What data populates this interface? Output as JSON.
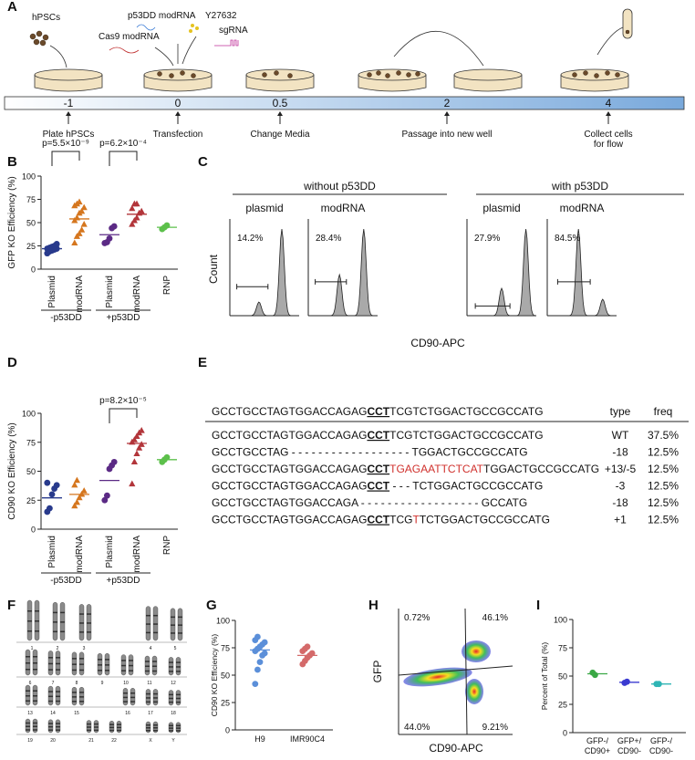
{
  "panel_labels": [
    "A",
    "B",
    "C",
    "D",
    "E",
    "F",
    "G",
    "H",
    "I"
  ],
  "timeline": {
    "reagents": [
      "hPSCs",
      "p53DD modRNA",
      "Y27632",
      "Cas9 modRNA",
      "sgRNA"
    ],
    "days": [
      "-1",
      "0",
      "0.5",
      "2",
      "4"
    ],
    "steps": [
      [
        "Plate hPSCs"
      ],
      [
        "Transfection"
      ],
      [
        "Change Media"
      ],
      [
        "Passage into new well"
      ],
      [
        "Collect cells",
        "for flow"
      ]
    ]
  },
  "chart_data": [
    {
      "type": "strip",
      "y_label": "GFP KO Efficiency (%)",
      "categories": [
        "Plasmid",
        "modRNA",
        "Plasmid",
        "modRNA",
        "RNP"
      ],
      "group_labels": [
        "-p53DD",
        "+p53DD"
      ],
      "annotations": [
        "p=5.5×10⁻⁹",
        "p=6.2×10⁻⁴"
      ],
      "colors": [
        "#283a8c",
        "#d5761e",
        "#5b2a85",
        "#b2353a",
        "#5cc04b"
      ],
      "markers": [
        "circle",
        "triangle",
        "circle",
        "triangle",
        "circle"
      ],
      "points": [
        [
          17,
          19,
          20,
          21,
          22,
          22,
          23,
          24,
          25,
          27
        ],
        [
          28,
          35,
          38,
          42,
          48,
          52,
          55,
          60,
          62,
          66,
          68,
          70,
          72
        ],
        [
          28,
          29,
          33,
          44,
          46
        ],
        [
          48,
          52,
          55,
          60,
          62,
          65,
          70,
          70
        ],
        [
          43,
          45,
          47
        ]
      ],
      "means": [
        22,
        54,
        37,
        59,
        45
      ],
      "ylim": [
        0,
        100
      ],
      "yticks": [
        0,
        25,
        50,
        75,
        100
      ]
    },
    {
      "type": "strip",
      "y_label": "CD90 KO Efficiency (%)",
      "categories": [
        "Plasmid",
        "modRNA",
        "Plasmid",
        "modRNA",
        "RNP"
      ],
      "group_labels": [
        "-p53DD",
        "+p53DD"
      ],
      "annotations": [
        "p=8.2×10⁻⁵"
      ],
      "colors": [
        "#283a8c",
        "#d5761e",
        "#5b2a85",
        "#b2353a",
        "#5cc04b"
      ],
      "markers": [
        "circle",
        "triangle",
        "circle",
        "triangle",
        "circle"
      ],
      "points": [
        [
          15,
          18,
          30,
          35,
          38,
          40
        ],
        [
          20,
          23,
          27,
          30,
          33,
          38,
          42
        ],
        [
          25,
          29,
          52,
          55,
          58
        ],
        [
          39,
          58,
          65,
          70,
          73,
          75,
          77,
          80,
          83,
          85
        ],
        [
          58,
          60,
          62
        ]
      ],
      "means": [
        27,
        30,
        42,
        74,
        60
      ],
      "ylim": [
        0,
        100
      ],
      "yticks": [
        0,
        25,
        50,
        75,
        100
      ]
    },
    {
      "type": "strip",
      "y_label": "CD90 KO Efficiency (%)",
      "categories": [
        "H9",
        "IMR90C4"
      ],
      "colors": [
        "#5b8fd9",
        "#d46a6a"
      ],
      "markers": [
        "circle",
        "circle"
      ],
      "points": [
        [
          42,
          55,
          62,
          68,
          70,
          72,
          74,
          76,
          78,
          80,
          82,
          85
        ],
        [
          60,
          63,
          66,
          68,
          70,
          72,
          74,
          76
        ]
      ],
      "means": [
        73,
        68
      ],
      "ylim": [
        0,
        100
      ],
      "yticks": [
        0,
        25,
        50,
        75,
        100
      ]
    },
    {
      "type": "strip",
      "y_label": "Percent of Total (%)",
      "categories": [
        [
          "GFP-/",
          "CD90+"
        ],
        [
          "GFP+/",
          "CD90-"
        ],
        [
          "GFP-/",
          "CD90-"
        ]
      ],
      "colors": [
        "#3aa845",
        "#3b3bd0",
        "#2fb5b5"
      ],
      "markers": [
        "circle",
        "circle",
        "circle"
      ],
      "points": [
        [
          53,
          51
        ],
        [
          44,
          45
        ],
        [
          43,
          43
        ]
      ],
      "means": [
        52,
        44.5,
        43
      ],
      "ylim": [
        0,
        100
      ],
      "yticks": [
        0,
        25,
        50,
        75,
        100
      ]
    }
  ],
  "flow_histograms": {
    "column_groups": [
      "without p53DD",
      "with p53DD"
    ],
    "panels": [
      "plasmid",
      "modRNA",
      "plasmid",
      "modRNA"
    ],
    "percentages": [
      "14.2%",
      "28.4%",
      "27.9%",
      "84.5%"
    ],
    "y_label": "Count",
    "x_label": "CD90-APC"
  },
  "sequences": {
    "header": {
      "segments": [
        {
          "text": "GCCTGCCTAGTGGACCAGAG"
        },
        {
          "text": "CCT",
          "underline": true
        },
        {
          "text": "TCGTCTGGACTGCCGCCATG"
        }
      ],
      "type": "type",
      "freq": "freq"
    },
    "rows": [
      {
        "segments": [
          {
            "text": "GCCTGCCTAGTGGACCAGAG"
          },
          {
            "text": "CCT",
            "underline": true
          },
          {
            "text": "TCGTCTGGACTGCCGCCATG"
          }
        ],
        "type": "WT",
        "freq": "37.5%"
      },
      {
        "segments": [
          {
            "text": "GCCTGCCTAG - - - - - - - - - - - - - - - - - - TGGACTGCCGCCATG"
          }
        ],
        "type": "-18",
        "freq": "12.5%"
      },
      {
        "segments": [
          {
            "text": "GCCTGCCTAGTGGACCAGAG"
          },
          {
            "text": "CCT",
            "underline": true
          },
          {
            "text": "TGAGAATTCTCAT",
            "color": "#d0312d"
          },
          {
            "text": "TGGACTGCCGCCATG"
          }
        ],
        "type": "+13/-5",
        "freq": "12.5%"
      },
      {
        "segments": [
          {
            "text": "GCCTGCCTAGTGGACCAGAG"
          },
          {
            "text": "CCT",
            "underline": true
          },
          {
            "text": " - - - TCTGGACTGCCGCCATG"
          }
        ],
        "type": "-3",
        "freq": "12.5%"
      },
      {
        "segments": [
          {
            "text": "GCCTGCCTAGTGGACCAGA - - - - - - - - - - - - - - - - - - GCCATG"
          }
        ],
        "type": "-18",
        "freq": "12.5%"
      },
      {
        "segments": [
          {
            "text": "GCCTGCCTAGTGGACCAGAG"
          },
          {
            "text": "CCT",
            "underline": true
          },
          {
            "text": "TCG"
          },
          {
            "text": "T",
            "color": "#d0312d"
          },
          {
            "text": "TCTGGACTGCCGCCATG"
          }
        ],
        "type": "+1",
        "freq": "12.5%"
      }
    ]
  },
  "karyotype": {
    "labels": [
      "1",
      "2",
      "3",
      "4",
      "5",
      "6",
      "7",
      "8",
      "9",
      "10",
      "11",
      "12",
      "13",
      "14",
      "15",
      "16",
      "17",
      "18",
      "19",
      "20",
      "21",
      "22",
      "X",
      "Y"
    ]
  },
  "flow_scatter": {
    "y_label": "GFP",
    "x_label": "CD90-APC",
    "quadrants": [
      "0.72%",
      "46.1%",
      "44.0%",
      "9.21%"
    ]
  }
}
